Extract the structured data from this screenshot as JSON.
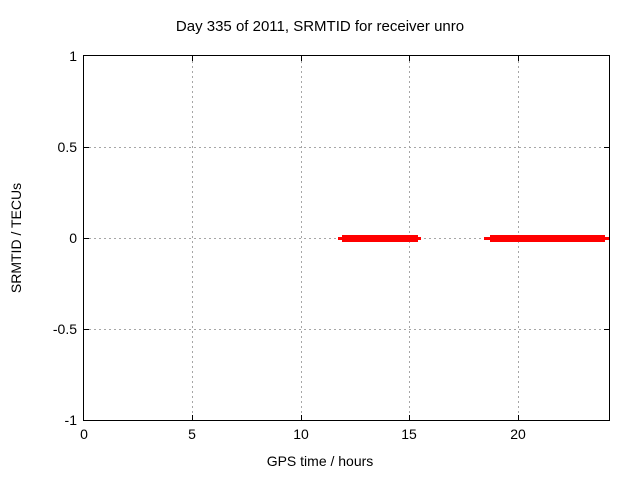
{
  "chart_data": {
    "type": "line",
    "title": "Day 335 of 2011, SRMTID for receiver unro",
    "xlabel": "GPS time / hours",
    "ylabel": "SRMTID / TECUs",
    "xlim": [
      0,
      24.2
    ],
    "ylim": [
      -1,
      1
    ],
    "xticks": [
      0,
      5,
      10,
      15,
      20
    ],
    "xtick_labels": [
      "0",
      "5",
      "10",
      "15",
      "20"
    ],
    "yticks": [
      -1,
      -0.5,
      0,
      0.5,
      1
    ],
    "ytick_labels": [
      "-1",
      "-0.5",
      "0",
      "0.5",
      "1"
    ],
    "grid": true,
    "legend": false,
    "series": [
      {
        "name": "SRMTID",
        "color": "#ff0000",
        "y_value": 0,
        "segments": [
          {
            "x_start": 11.7,
            "x_end": 15.55,
            "x_thick_start": 11.9,
            "x_thick_end": 15.4
          },
          {
            "x_start": 18.45,
            "x_end": 24.2,
            "x_thick_start": 18.7,
            "x_thick_end": 24.0
          }
        ]
      }
    ],
    "colors": {
      "background": "#ffffff",
      "axis": "#000000",
      "grid": "#a6a6a6",
      "series": "#ff0000",
      "text": "#000000"
    }
  }
}
